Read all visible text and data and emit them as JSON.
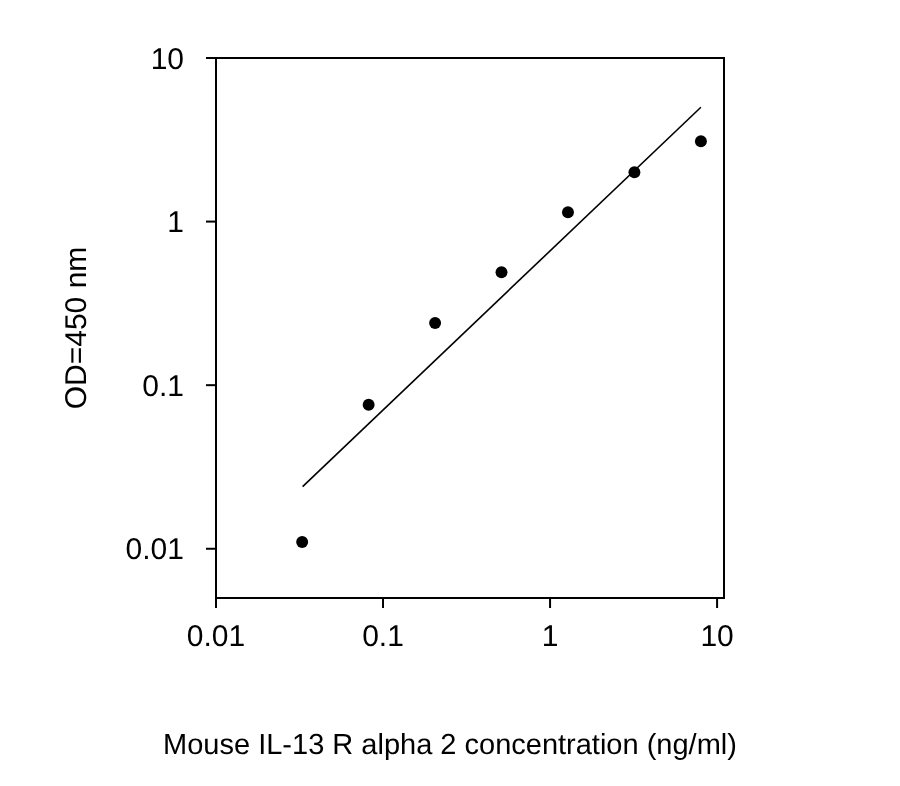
{
  "chart_data": {
    "type": "scatter",
    "xlabel": "Mouse IL-13 R alpha 2  concentration (ng/ml)",
    "ylabel": "OD=450 nm",
    "log": "xy",
    "xlim": [
      0.01,
      11
    ],
    "ylim": [
      0.005,
      10
    ],
    "xticks": [
      0.01,
      0.1,
      1,
      10
    ],
    "yticks": [
      0.01,
      0.1,
      1,
      10
    ],
    "grid": false,
    "marker": "circle",
    "series": [
      {
        "color": "#000000",
        "x": [
          0.0328,
          0.082,
          0.205,
          0.512,
          1.28,
          3.2,
          8
        ],
        "values": [
          0.011,
          0.076,
          0.24,
          0.49,
          1.14,
          2.0,
          3.1
        ]
      },
      {
        "type": "line",
        "color": "#000000",
        "marker": "none",
        "line_style": "solid",
        "x": [
          0.033,
          8
        ],
        "values": [
          0.024,
          5.0
        ]
      }
    ]
  }
}
